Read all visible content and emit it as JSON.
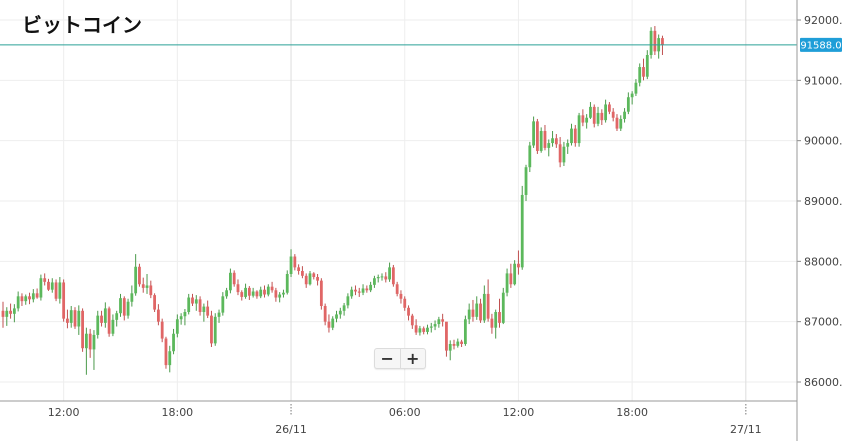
{
  "title": "ビットコイン",
  "zoom": {
    "minus": "−",
    "plus": "+"
  },
  "colors": {
    "up": "#5cb85c",
    "down": "#e06666",
    "wick_up": "#4a9a4a",
    "wick_down": "#c05050",
    "price_line": "#2aa198",
    "label_bg": "#1f9ed8",
    "grid": "#eeeeee"
  },
  "chart_data": {
    "type": "candlestick",
    "title": "ビットコイン",
    "current_price": 91588.0,
    "current_price_label": "91588.0",
    "ylim": [
      85800,
      92300
    ],
    "y_ticks": [
      86000,
      87000,
      88000,
      89000,
      90000,
      91000,
      92000
    ],
    "y_tick_labels": [
      "86000.0",
      "87000.0",
      "88000.0",
      "89000.0",
      "90000.0",
      "91000.0",
      "92000.0"
    ],
    "x_ticks": [
      {
        "label": "12:00",
        "index": 16,
        "day_start": false
      },
      {
        "label": "18:00",
        "index": 46,
        "day_start": false
      },
      {
        "label": "26/11",
        "index": 76,
        "day_start": true
      },
      {
        "label": "06:00",
        "index": 106,
        "day_start": false
      },
      {
        "label": "12:00",
        "index": 136,
        "day_start": false
      },
      {
        "label": "18:00",
        "index": 166,
        "day_start": false
      },
      {
        "label": "27/11",
        "index": 196,
        "day_start": true
      }
    ],
    "grid": true,
    "candles": [
      [
        87180,
        87330,
        86900,
        87080
      ],
      [
        87080,
        87240,
        86930,
        87180
      ],
      [
        87180,
        87300,
        87050,
        87130
      ],
      [
        87130,
        87290,
        86990,
        87220
      ],
      [
        87220,
        87500,
        87170,
        87420
      ],
      [
        87420,
        87470,
        87260,
        87340
      ],
      [
        87340,
        87450,
        87280,
        87420
      ],
      [
        87420,
        87480,
        87290,
        87370
      ],
      [
        87370,
        87540,
        87320,
        87470
      ],
      [
        87470,
        87550,
        87380,
        87400
      ],
      [
        87400,
        87780,
        87350,
        87720
      ],
      [
        87720,
        87800,
        87600,
        87660
      ],
      [
        87660,
        87710,
        87510,
        87530
      ],
      [
        87530,
        87720,
        87480,
        87650
      ],
      [
        87650,
        87700,
        87340,
        87380
      ],
      [
        87380,
        87740,
        87300,
        87650
      ],
      [
        87650,
        87700,
        87000,
        87050
      ],
      [
        87050,
        87200,
        86890,
        86980
      ],
      [
        86980,
        87260,
        86900,
        87190
      ],
      [
        87190,
        87240,
        86880,
        86920
      ],
      [
        86920,
        87270,
        86780,
        87180
      ],
      [
        87180,
        87220,
        86500,
        86560
      ],
      [
        86560,
        86900,
        86120,
        86800
      ],
      [
        86800,
        86880,
        86400,
        86540
      ],
      [
        86540,
        86860,
        86200,
        86780
      ],
      [
        86780,
        87180,
        86720,
        87100
      ],
      [
        87100,
        87180,
        86920,
        86980
      ],
      [
        86980,
        87320,
        86900,
        87220
      ],
      [
        87220,
        87250,
        86750,
        86800
      ],
      [
        86800,
        87120,
        86760,
        87030
      ],
      [
        87030,
        87180,
        86920,
        87140
      ],
      [
        87140,
        87460,
        87080,
        87390
      ],
      [
        87390,
        87420,
        87020,
        87100
      ],
      [
        87100,
        87380,
        87050,
        87330
      ],
      [
        87330,
        87600,
        87250,
        87470
      ],
      [
        87470,
        88120,
        87430,
        87910
      ],
      [
        87910,
        87960,
        87580,
        87620
      ],
      [
        87620,
        87730,
        87480,
        87560
      ],
      [
        87560,
        87790,
        87460,
        87600
      ],
      [
        87600,
        87680,
        87390,
        87440
      ],
      [
        87440,
        87470,
        87160,
        87200
      ],
      [
        87200,
        87290,
        86940,
        87000
      ],
      [
        87000,
        87050,
        86660,
        86720
      ],
      [
        86720,
        86750,
        86220,
        86280
      ],
      [
        86280,
        86600,
        86160,
        86510
      ],
      [
        86510,
        86880,
        86460,
        86800
      ],
      [
        86800,
        87120,
        86740,
        87040
      ],
      [
        87040,
        87140,
        86950,
        87090
      ],
      [
        87090,
        87210,
        86940,
        87160
      ],
      [
        87160,
        87460,
        87120,
        87400
      ],
      [
        87400,
        87460,
        87260,
        87300
      ],
      [
        87300,
        87440,
        87180,
        87370
      ],
      [
        87370,
        87420,
        87100,
        87160
      ],
      [
        87160,
        87300,
        87000,
        87250
      ],
      [
        87250,
        87350,
        87060,
        87100
      ],
      [
        87100,
        87180,
        86580,
        86640
      ],
      [
        86640,
        87140,
        86600,
        87080
      ],
      [
        87080,
        87200,
        86980,
        87150
      ],
      [
        87150,
        87490,
        87100,
        87420
      ],
      [
        87420,
        87560,
        87380,
        87520
      ],
      [
        87520,
        87880,
        87470,
        87810
      ],
      [
        87810,
        87850,
        87580,
        87620
      ],
      [
        87620,
        87700,
        87440,
        87490
      ],
      [
        87490,
        87520,
        87350,
        87410
      ],
      [
        87410,
        87630,
        87380,
        87560
      ],
      [
        87560,
        87590,
        87360,
        87430
      ],
      [
        87430,
        87560,
        87400,
        87500
      ],
      [
        87500,
        87520,
        87380,
        87420
      ],
      [
        87420,
        87580,
        87390,
        87530
      ],
      [
        87530,
        87600,
        87400,
        87450
      ],
      [
        87450,
        87620,
        87420,
        87580
      ],
      [
        87580,
        87660,
        87480,
        87520
      ],
      [
        87520,
        87560,
        87330,
        87400
      ],
      [
        87400,
        87490,
        87320,
        87450
      ],
      [
        87450,
        87530,
        87400,
        87480
      ],
      [
        87480,
        87850,
        87450,
        87790
      ],
      [
        87790,
        88200,
        87740,
        88080
      ],
      [
        88080,
        88120,
        87850,
        87900
      ],
      [
        87900,
        87950,
        87780,
        87840
      ],
      [
        87840,
        87920,
        87720,
        87760
      ],
      [
        87760,
        87800,
        87560,
        87620
      ],
      [
        87620,
        87840,
        87600,
        87800
      ],
      [
        87800,
        87820,
        87700,
        87740
      ],
      [
        87740,
        87790,
        87600,
        87680
      ],
      [
        87680,
        87720,
        87200,
        87260
      ],
      [
        87260,
        87300,
        86940,
        87000
      ],
      [
        87000,
        87120,
        86820,
        86900
      ],
      [
        86900,
        87090,
        86860,
        87050
      ],
      [
        87050,
        87180,
        86990,
        87120
      ],
      [
        87120,
        87230,
        87050,
        87180
      ],
      [
        87180,
        87310,
        87100,
        87270
      ],
      [
        87270,
        87470,
        87220,
        87420
      ],
      [
        87420,
        87580,
        87380,
        87530
      ],
      [
        87530,
        87600,
        87440,
        87500
      ],
      [
        87500,
        87560,
        87410,
        87480
      ],
      [
        87480,
        87620,
        87440,
        87550
      ],
      [
        87550,
        87600,
        87480,
        87520
      ],
      [
        87520,
        87660,
        87490,
        87610
      ],
      [
        87610,
        87760,
        87560,
        87720
      ],
      [
        87720,
        87780,
        87650,
        87740
      ],
      [
        87740,
        87800,
        87680,
        87750
      ],
      [
        87750,
        87820,
        87650,
        87700
      ],
      [
        87700,
        87980,
        87660,
        87900
      ],
      [
        87900,
        87940,
        87580,
        87620
      ],
      [
        87620,
        87660,
        87420,
        87460
      ],
      [
        87460,
        87520,
        87300,
        87380
      ],
      [
        87380,
        87420,
        87180,
        87230
      ],
      [
        87230,
        87270,
        87020,
        87100
      ],
      [
        87100,
        87130,
        86880,
        86940
      ],
      [
        86940,
        87040,
        86780,
        86820
      ],
      [
        86820,
        86930,
        86770,
        86890
      ],
      [
        86890,
        86920,
        86790,
        86830
      ],
      [
        86830,
        86950,
        86790,
        86900
      ],
      [
        86900,
        86980,
        86820,
        86920
      ],
      [
        86920,
        87020,
        86860,
        86960
      ],
      [
        86960,
        87080,
        86900,
        87040
      ],
      [
        87040,
        87130,
        86920,
        87000
      ],
      [
        87000,
        86980,
        86420,
        86520
      ],
      [
        86520,
        86690,
        86360,
        86630
      ],
      [
        86630,
        86700,
        86540,
        86600
      ],
      [
        86600,
        86720,
        86570,
        86670
      ],
      [
        86670,
        86700,
        86580,
        86630
      ],
      [
        86630,
        87100,
        86600,
        87040
      ],
      [
        87040,
        87300,
        86960,
        87200
      ],
      [
        87200,
        87360,
        87000,
        87080
      ],
      [
        87080,
        87420,
        87030,
        87300
      ],
      [
        87300,
        87380,
        86980,
        87020
      ],
      [
        87020,
        87600,
        86980,
        87460
      ],
      [
        87460,
        87700,
        87000,
        87050
      ],
      [
        87050,
        87130,
        86800,
        86900
      ],
      [
        86900,
        87200,
        86720,
        87160
      ],
      [
        87160,
        87380,
        86900,
        86980
      ],
      [
        86980,
        87560,
        86960,
        87480
      ],
      [
        87480,
        87880,
        87420,
        87800
      ],
      [
        87800,
        87960,
        87560,
        87620
      ],
      [
        87620,
        88020,
        87600,
        87960
      ],
      [
        87960,
        88180,
        87780,
        87900
      ],
      [
        87900,
        89250,
        87860,
        89100
      ],
      [
        89100,
        89600,
        89000,
        89560
      ],
      [
        89560,
        89980,
        89480,
        89920
      ],
      [
        89920,
        90400,
        89880,
        90320
      ],
      [
        90320,
        90360,
        89780,
        89830
      ],
      [
        89830,
        90220,
        89800,
        90160
      ],
      [
        90160,
        90260,
        89840,
        89880
      ],
      [
        89880,
        90020,
        89740,
        89960
      ],
      [
        89960,
        90160,
        89900,
        90040
      ],
      [
        90040,
        90110,
        89880,
        89940
      ],
      [
        89940,
        90060,
        89560,
        89640
      ],
      [
        89640,
        89980,
        89580,
        89900
      ],
      [
        89900,
        90020,
        89780,
        89960
      ],
      [
        89960,
        90280,
        89920,
        90200
      ],
      [
        90200,
        90260,
        89900,
        89960
      ],
      [
        89960,
        90460,
        89900,
        90420
      ],
      [
        90420,
        90520,
        90240,
        90300
      ],
      [
        90300,
        90440,
        90200,
        90380
      ],
      [
        90380,
        90640,
        90360,
        90560
      ],
      [
        90560,
        90600,
        90220,
        90280
      ],
      [
        90280,
        90560,
        90240,
        90460
      ],
      [
        90460,
        90520,
        90260,
        90340
      ],
      [
        90340,
        90680,
        90300,
        90600
      ],
      [
        90600,
        90640,
        90440,
        90480
      ],
      [
        90480,
        90540,
        90320,
        90380
      ],
      [
        90380,
        90440,
        90160,
        90200
      ],
      [
        90200,
        90420,
        90160,
        90360
      ],
      [
        90360,
        90540,
        90300,
        90480
      ],
      [
        90480,
        90800,
        90440,
        90720
      ],
      [
        90720,
        90820,
        90600,
        90780
      ],
      [
        90780,
        91020,
        90740,
        90960
      ],
      [
        90960,
        91280,
        90900,
        91220
      ],
      [
        91220,
        91360,
        91000,
        91060
      ],
      [
        91060,
        91500,
        91020,
        91420
      ],
      [
        91420,
        91880,
        91360,
        91820
      ],
      [
        91820,
        91900,
        91420,
        91480
      ],
      [
        91480,
        91760,
        91360,
        91700
      ],
      [
        91700,
        91740,
        91420,
        91588
      ]
    ]
  }
}
